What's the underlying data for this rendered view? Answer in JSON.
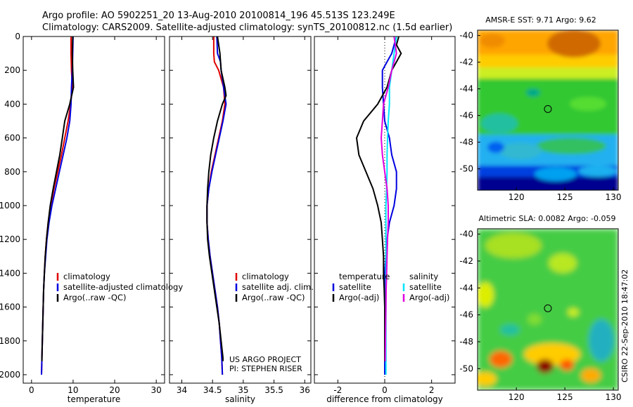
{
  "header": {
    "line1": "Argo profile: AO 5902251_20 13-Aug-2010 20100814_196 45.513S 123.249E",
    "line2": "Climatology: CARS2009. Satellite-adjusted climatology: synTS_20100812.nc (1.5d earlier)"
  },
  "colors": {
    "red": "#e00000",
    "blue": "#0000e0",
    "black": "#000000",
    "cyan": "#00e5ff",
    "magenta": "#e000e0"
  },
  "chart_data": [
    {
      "type": "line",
      "id": "temperature",
      "xlabel": "temperature",
      "xlim": [
        -2,
        32
      ],
      "ylim": [
        2050,
        0
      ],
      "xticks": [
        "0",
        "10",
        "20",
        "30"
      ],
      "xtick_values": [
        0,
        10,
        20,
        30
      ],
      "yticks": [
        "0",
        "200",
        "400",
        "600",
        "800",
        "1000",
        "1200",
        "1400",
        "1600",
        "1800",
        "2000"
      ],
      "ytick_values": [
        0,
        200,
        400,
        600,
        800,
        1000,
        1200,
        1400,
        1600,
        1800,
        2000
      ],
      "legend": [
        "climatology",
        "satellite-adjusted climatology",
        "Argo(..raw -QC)"
      ],
      "series": [
        {
          "name": "climatology",
          "color": "red",
          "depth": [
            0,
            100,
            200,
            300,
            400,
            500,
            600,
            700,
            800,
            900,
            1000,
            1100,
            1200,
            1300,
            1400,
            1500,
            1600,
            1700,
            1800,
            1900,
            2000
          ],
          "values": [
            9.5,
            9.5,
            9.6,
            9.8,
            9.4,
            8.8,
            8.0,
            7.2,
            6.3,
            5.4,
            4.6,
            4.0,
            3.6,
            3.3,
            3.1,
            2.9,
            2.8,
            2.7,
            2.6,
            2.5,
            2.4
          ]
        },
        {
          "name": "satellite-adjusted climatology",
          "color": "blue",
          "depth": [
            0,
            100,
            200,
            300,
            400,
            500,
            600,
            700,
            800,
            900,
            1000,
            1100,
            1200,
            1300,
            1400,
            1500,
            1600,
            1700,
            1800,
            1900,
            2000
          ],
          "values": [
            10.0,
            9.9,
            9.8,
            9.6,
            9.5,
            9.2,
            8.5,
            7.6,
            6.7,
            5.8,
            4.9,
            4.2,
            3.7,
            3.4,
            3.1,
            2.9,
            2.8,
            2.7,
            2.6,
            2.5,
            2.4
          ]
        },
        {
          "name": "Argo(..raw -QC)",
          "color": "black",
          "depth": [
            0,
            100,
            200,
            300,
            400,
            500,
            600,
            700,
            800,
            900,
            1000,
            1100,
            1200,
            1300,
            1400,
            1500,
            1600,
            1700,
            1800,
            1900,
            1920
          ],
          "values": [
            9.9,
            9.8,
            9.9,
            10.1,
            9.2,
            8.0,
            7.4,
            6.8,
            6.0,
            5.2,
            4.5,
            4.0,
            3.6,
            3.3,
            3.1,
            2.9,
            2.8,
            2.7,
            2.6,
            2.5,
            2.5
          ]
        }
      ]
    },
    {
      "type": "line",
      "id": "salinity",
      "xlabel": "salinity",
      "xlim": [
        33.8,
        36.1
      ],
      "ylim": [
        2050,
        0
      ],
      "xticks": [
        "34",
        "34.5",
        "35",
        "35.5",
        "36"
      ],
      "xtick_values": [
        34,
        34.5,
        35,
        35.5,
        36
      ],
      "legend": [
        "climatology",
        "satellite adj. clim.",
        "Argo(..raw -QC)"
      ],
      "annotation": [
        "US ARGO PROJECT",
        "PI: STEPHEN RISER"
      ],
      "series": [
        {
          "name": "climatology",
          "color": "red",
          "depth": [
            0,
            100,
            150,
            200,
            300,
            400,
            500,
            600,
            700,
            800,
            900,
            1000,
            1100,
            1200,
            1300,
            1400,
            1500,
            1600,
            1700,
            1800,
            1900,
            2000
          ],
          "values": [
            34.52,
            34.52,
            34.53,
            34.6,
            34.68,
            34.7,
            34.66,
            34.6,
            34.54,
            34.48,
            34.44,
            34.41,
            34.41,
            34.43,
            34.46,
            34.5,
            34.54,
            34.58,
            34.61,
            34.63,
            34.65,
            34.66
          ]
        },
        {
          "name": "satellite adj. clim.",
          "color": "blue",
          "depth": [
            0,
            100,
            150,
            200,
            300,
            400,
            500,
            600,
            700,
            800,
            900,
            1000,
            1100,
            1200,
            1300,
            1400,
            1500,
            1600,
            1700,
            1800,
            1900,
            2000
          ],
          "values": [
            34.57,
            34.58,
            34.63,
            34.64,
            34.68,
            34.72,
            34.67,
            34.61,
            34.55,
            34.49,
            34.44,
            34.41,
            34.41,
            34.43,
            34.46,
            34.5,
            34.54,
            34.58,
            34.61,
            34.63,
            34.65,
            34.66
          ]
        },
        {
          "name": "Argo(..raw -QC)",
          "color": "black",
          "depth": [
            0,
            100,
            200,
            300,
            350,
            400,
            500,
            600,
            700,
            800,
            900,
            1000,
            1100,
            1200,
            1300,
            1400,
            1500,
            1600,
            1700,
            1800,
            1900,
            1920
          ],
          "values": [
            34.58,
            34.62,
            34.64,
            34.7,
            34.72,
            34.66,
            34.58,
            34.52,
            34.47,
            34.44,
            34.42,
            34.41,
            34.41,
            34.42,
            34.45,
            34.49,
            34.53,
            34.57,
            34.61,
            34.64,
            34.67,
            34.67
          ]
        }
      ]
    },
    {
      "type": "line",
      "id": "difference",
      "xlabel": "difference from climatology",
      "xlim": [
        -3,
        3
      ],
      "ylim": [
        2050,
        0
      ],
      "xticks": [
        "-2",
        "0",
        "2"
      ],
      "xtick_values": [
        -2,
        0,
        2
      ],
      "legend_left": [
        "temperature",
        "satellite",
        "Argo(-adj)"
      ],
      "legend_right": [
        "salinity",
        "satellite",
        "Argo(-adj)"
      ],
      "series": [
        {
          "name": "temperature satellite",
          "color": "blue",
          "depth": [
            0,
            50,
            100,
            150,
            200,
            300,
            400,
            500,
            600,
            700,
            800,
            900,
            1000,
            1100,
            1200,
            1300,
            1400,
            1500,
            1600,
            1700,
            1800,
            1900,
            2000
          ],
          "values": [
            0.5,
            0.4,
            0.3,
            0.1,
            -0.1,
            -0.1,
            -0.05,
            0.0,
            0.2,
            0.3,
            0.5,
            0.5,
            0.4,
            0.2,
            0.1,
            0.05,
            0.0,
            0.0,
            0.0,
            0.0,
            0.0,
            0.0,
            0.0
          ]
        },
        {
          "name": "temperature Argo(-adj)",
          "color": "black",
          "depth": [
            0,
            50,
            100,
            150,
            200,
            300,
            400,
            500,
            600,
            700,
            800,
            900,
            1000,
            1100,
            1200,
            1300,
            1400,
            1500,
            1600,
            1700,
            1800,
            1900,
            1920
          ],
          "values": [
            0.6,
            0.5,
            0.7,
            0.5,
            0.3,
            0.1,
            -0.3,
            -0.9,
            -1.2,
            -1.1,
            -0.8,
            -0.5,
            -0.3,
            -0.15,
            -0.1,
            -0.05,
            -0.05,
            -0.02,
            0.0,
            0.0,
            0.0,
            0.0,
            0.0
          ]
        },
        {
          "name": "salinity satellite",
          "color": "cyan",
          "depth": [
            0,
            100,
            200,
            300,
            400,
            500,
            600,
            700,
            800,
            900,
            1000,
            1100,
            1200,
            1300,
            1400,
            1500,
            1600,
            1700,
            1800,
            1900,
            2000
          ],
          "values": [
            0.5,
            0.4,
            0.3,
            0.2,
            0.2,
            0.15,
            0.12,
            0.1,
            0.1,
            0.08,
            0.05,
            0.05,
            0.05,
            0.05,
            0.05,
            0.05,
            0.05,
            0.05,
            0.05,
            0.05,
            0.05
          ]
        },
        {
          "name": "salinity Argo(-adj)",
          "color": "magenta",
          "depth": [
            0,
            100,
            200,
            300,
            400,
            500,
            600,
            700,
            800,
            900,
            1000,
            1100,
            1200,
            1300,
            1400,
            1500,
            1600,
            1700,
            1800,
            1900,
            1920
          ],
          "values": [
            0.4,
            0.5,
            0.3,
            0.15,
            -0.05,
            -0.1,
            -0.15,
            -0.1,
            0.0,
            0.1,
            0.15,
            0.15,
            0.12,
            0.1,
            0.08,
            0.06,
            0.05,
            0.04,
            0.03,
            0.02,
            0.02
          ]
        }
      ]
    },
    {
      "type": "heatmap",
      "id": "sst-map",
      "title": "AMSR-E SST: 9.71 Argo: 9.62",
      "xlim": [
        116,
        130.5
      ],
      "ylim": [
        -51.6,
        -39.6
      ],
      "xticks": [
        "120",
        "125",
        "130"
      ],
      "xtick_values": [
        120,
        125,
        130
      ],
      "yticks": [
        "-40",
        "-42",
        "-44",
        "-46",
        "-48",
        "-50"
      ],
      "ytick_values": [
        -40,
        -42,
        -44,
        -46,
        -48,
        -50
      ],
      "argo_marker": {
        "lon": 123.249,
        "lat": -45.513
      }
    },
    {
      "type": "heatmap",
      "id": "sla-map",
      "title": "Altimetric SLA: 0.0082 Argo: -0.059",
      "xlim": [
        116,
        130.5
      ],
      "ylim": [
        -51.6,
        -39.6
      ],
      "xticks": [
        "120",
        "125",
        "130"
      ],
      "xtick_values": [
        120,
        125,
        130
      ],
      "yticks": [
        "-40",
        "-42",
        "-44",
        "-46",
        "-48",
        "-50"
      ],
      "ytick_values": [
        -40,
        -42,
        -44,
        -46,
        -48,
        -50
      ],
      "argo_marker": {
        "lon": 123.249,
        "lat": -45.513
      }
    }
  ],
  "footer": {
    "credit": "CSIRO 22-Sep-2010 18:47:02"
  }
}
